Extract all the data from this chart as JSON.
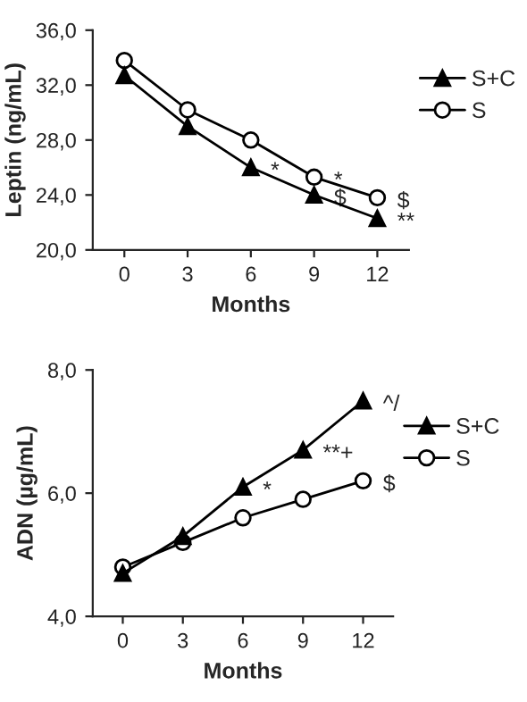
{
  "chart_data": [
    {
      "type": "line",
      "ylabel": "Leptin (ng/mL)",
      "xlabel": "Months",
      "categories": [
        "0",
        "3",
        "6",
        "9",
        "12"
      ],
      "series": [
        {
          "name": "S+C",
          "color": "#000000",
          "marker": "triangle",
          "values": [
            32.7,
            29.0,
            26.0,
            24.0,
            22.3
          ]
        },
        {
          "name": "S",
          "color": "#000000",
          "marker": "circle",
          "values": [
            33.8,
            30.2,
            28.0,
            25.3,
            23.8
          ]
        }
      ],
      "ylim": [
        20,
        36
      ],
      "yticks": [
        {
          "value": 20,
          "label": "20,0"
        },
        {
          "value": 24,
          "label": "24,0"
        },
        {
          "value": 28,
          "label": "28,0"
        },
        {
          "value": 32,
          "label": "32,0"
        },
        {
          "value": 36,
          "label": "36,0"
        }
      ],
      "annotations": [
        {
          "text": "*",
          "x": "6",
          "y": 26.0
        },
        {
          "text": "*",
          "x": "9",
          "y": 25.3
        },
        {
          "text": "$",
          "x": "9",
          "y": 24.0
        },
        {
          "text": "$",
          "x": "12",
          "y": 23.8
        },
        {
          "text": "**",
          "x": "12",
          "y": 22.3
        }
      ],
      "legend": "right",
      "grid": false
    },
    {
      "type": "line",
      "ylabel": "ADN (µg/mL)",
      "xlabel": "Months",
      "categories": [
        "0",
        "3",
        "6",
        "9",
        "12"
      ],
      "series": [
        {
          "name": "S+C",
          "color": "#000000",
          "marker": "triangle",
          "values": [
            4.7,
            5.3,
            6.1,
            6.7,
            7.5
          ]
        },
        {
          "name": "S",
          "color": "#000000",
          "marker": "circle",
          "values": [
            4.8,
            5.2,
            5.6,
            5.9,
            6.2
          ]
        }
      ],
      "ylim": [
        4,
        8
      ],
      "yticks": [
        {
          "value": 4,
          "label": "4,0"
        },
        {
          "value": 6,
          "label": "6,0"
        },
        {
          "value": 8,
          "label": "8,0"
        }
      ],
      "annotations": [
        {
          "text": "*",
          "x": "6",
          "y": 6.1
        },
        {
          "text": "**+",
          "x": "9",
          "y": 6.7
        },
        {
          "text": "^/",
          "x": "12",
          "y": 7.5
        },
        {
          "text": "$",
          "x": "12",
          "y": 6.2
        }
      ],
      "legend": "right",
      "grid": false
    }
  ]
}
